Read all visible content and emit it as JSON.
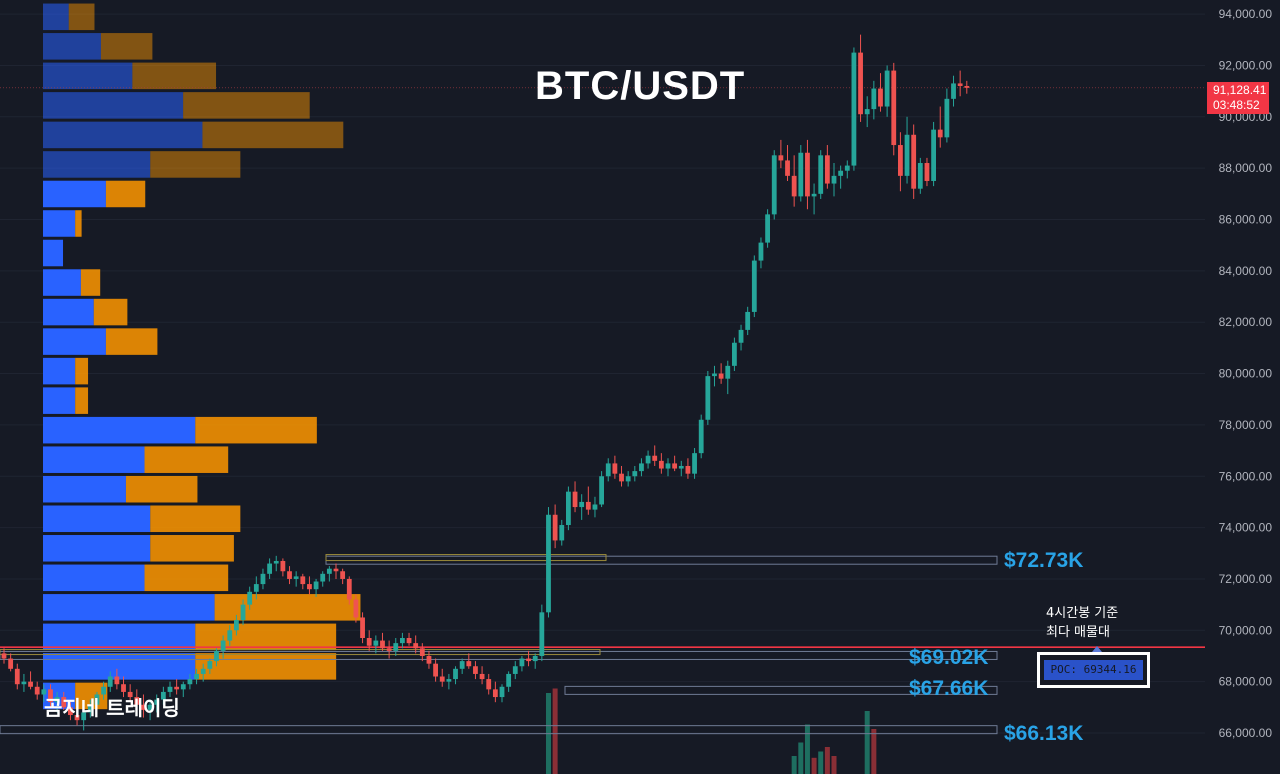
{
  "title": "BTC/USDT",
  "watermark": "곰지네 트레이딩",
  "current_price": {
    "price": "91,128.41",
    "countdown": "03:48:52",
    "value": 91128.41,
    "color": "#f23645"
  },
  "annotation": {
    "line1": "4시간봉 기준",
    "line2": "최다 매물대"
  },
  "poc": {
    "text": "POC: 69344.16",
    "value": 69344.16,
    "line_color": "#f23645"
  },
  "levels": [
    {
      "label": "$72.73K",
      "value": 72730
    },
    {
      "label": "$69.02K",
      "value": 69020
    },
    {
      "label": "$67.66K",
      "value": 67660
    },
    {
      "label": "$66.13K",
      "value": 66130
    }
  ],
  "colors": {
    "background": "#161a25",
    "up": "#26a69a",
    "down": "#ef5350",
    "volume_buy": "#2962ff",
    "volume_sell": "#ff9800",
    "level_label": "#29a3e6"
  },
  "chart_data": {
    "type": "candlestick",
    "title": "BTC/USDT",
    "timeframe": "4시간봉",
    "ylim": [
      65000,
      94500
    ],
    "y_ticks": [
      "94,000.00",
      "92,000.00",
      "90,000.00",
      "88,000.00",
      "86,000.00",
      "84,000.00",
      "82,000.00",
      "80,000.00",
      "78,000.00",
      "76,000.00",
      "74,000.00",
      "72,000.00",
      "70,000.00",
      "68,000.00",
      "66,000.00"
    ],
    "y_tick_values": [
      94000,
      92000,
      90000,
      88000,
      86000,
      84000,
      82000,
      80000,
      78000,
      76000,
      74000,
      72000,
      70000,
      68000,
      66000
    ],
    "volume_profile": {
      "bin_step": 1150,
      "top_price": 94450,
      "rows": [
        {
          "buy": 0.36,
          "sell": 0.36
        },
        {
          "buy": 0.81,
          "sell": 0.72
        },
        {
          "buy": 1.25,
          "sell": 1.17
        },
        {
          "buy": 1.96,
          "sell": 1.77
        },
        {
          "buy": 2.23,
          "sell": 1.97
        },
        {
          "buy": 1.5,
          "sell": 1.26
        },
        {
          "buy": 0.88,
          "sell": 0.55
        },
        {
          "buy": 0.45,
          "sell": 0.09
        },
        {
          "buy": 0.28,
          "sell": 0.0
        },
        {
          "buy": 0.53,
          "sell": 0.27
        },
        {
          "buy": 0.71,
          "sell": 0.47
        },
        {
          "buy": 0.88,
          "sell": 0.72
        },
        {
          "buy": 0.45,
          "sell": 0.18
        },
        {
          "buy": 0.45,
          "sell": 0.18
        },
        {
          "buy": 2.13,
          "sell": 1.7
        },
        {
          "buy": 1.42,
          "sell": 1.17
        },
        {
          "buy": 1.16,
          "sell": 1.0
        },
        {
          "buy": 1.5,
          "sell": 1.26
        },
        {
          "buy": 1.5,
          "sell": 1.17
        },
        {
          "buy": 1.42,
          "sell": 1.17
        },
        {
          "buy": 2.4,
          "sell": 2.04
        },
        {
          "buy": 2.13,
          "sell": 1.97
        },
        {
          "buy": 2.13,
          "sell": 1.97
        },
        {
          "buy": 0.45,
          "sell": 0.45
        }
      ]
    },
    "candles": [
      [
        69100,
        69300,
        68700,
        68900
      ],
      [
        68900,
        69100,
        68400,
        68500
      ],
      [
        68500,
        68700,
        67700,
        67900
      ],
      [
        67900,
        68300,
        67600,
        68000
      ],
      [
        68000,
        68400,
        67700,
        67800
      ],
      [
        67800,
        68000,
        67300,
        67500
      ],
      [
        67500,
        67900,
        67200,
        67700
      ],
      [
        67700,
        67900,
        67000,
        67200
      ],
      [
        67200,
        67600,
        66800,
        67400
      ],
      [
        67400,
        67600,
        66900,
        67000
      ],
      [
        67000,
        67200,
        66500,
        66700
      ],
      [
        66700,
        67000,
        66300,
        66500
      ],
      [
        66500,
        66900,
        66100,
        66800
      ],
      [
        66800,
        67300,
        66600,
        67100
      ],
      [
        67100,
        67600,
        66900,
        67500
      ],
      [
        67500,
        68000,
        67300,
        67800
      ],
      [
        67800,
        68400,
        67600,
        68200
      ],
      [
        68200,
        68500,
        67700,
        67900
      ],
      [
        67900,
        68200,
        67400,
        67600
      ],
      [
        67600,
        67900,
        67200,
        67400
      ],
      [
        67400,
        67700,
        66900,
        67100
      ],
      [
        67100,
        67500,
        66600,
        66900
      ],
      [
        66900,
        67300,
        66500,
        67100
      ],
      [
        67100,
        67500,
        66800,
        67300
      ],
      [
        67300,
        67800,
        67100,
        67600
      ],
      [
        67600,
        68000,
        67400,
        67800
      ],
      [
        67800,
        68100,
        67500,
        67700
      ],
      [
        67700,
        68000,
        67400,
        67900
      ],
      [
        67900,
        68300,
        67700,
        68100
      ],
      [
        68100,
        68500,
        67900,
        68300
      ],
      [
        68300,
        68700,
        68000,
        68500
      ],
      [
        68500,
        68900,
        68300,
        68800
      ],
      [
        68800,
        69300,
        68600,
        69200
      ],
      [
        69200,
        69800,
        68900,
        69600
      ],
      [
        69600,
        70200,
        69400,
        70000
      ],
      [
        70000,
        70600,
        69800,
        70400
      ],
      [
        70400,
        71200,
        70200,
        71000
      ],
      [
        71000,
        71700,
        70800,
        71500
      ],
      [
        71500,
        72100,
        71200,
        71800
      ],
      [
        71800,
        72400,
        71600,
        72200
      ],
      [
        72200,
        72800,
        72000,
        72600
      ],
      [
        72600,
        72900,
        72300,
        72700
      ],
      [
        72700,
        72800,
        72100,
        72300
      ],
      [
        72300,
        72500,
        71800,
        72000
      ],
      [
        72000,
        72300,
        71700,
        72100
      ],
      [
        72100,
        72200,
        71600,
        71800
      ],
      [
        71800,
        72100,
        71400,
        71600
      ],
      [
        71600,
        72000,
        71300,
        71900
      ],
      [
        71900,
        72300,
        71700,
        72200
      ],
      [
        72200,
        72500,
        71900,
        72400
      ],
      [
        72400,
        72600,
        72000,
        72300
      ],
      [
        72300,
        72400,
        71800,
        72000
      ],
      [
        72000,
        72100,
        71000,
        71200
      ],
      [
        71200,
        71400,
        70300,
        70500
      ],
      [
        70500,
        70700,
        69500,
        69700
      ],
      [
        69700,
        70000,
        69200,
        69400
      ],
      [
        69400,
        69800,
        69100,
        69600
      ],
      [
        69600,
        69900,
        69200,
        69300
      ],
      [
        69300,
        69600,
        68900,
        69200
      ],
      [
        69200,
        69700,
        69000,
        69500
      ],
      [
        69500,
        69900,
        69300,
        69700
      ],
      [
        69700,
        69900,
        69400,
        69500
      ],
      [
        69500,
        69800,
        69100,
        69300
      ],
      [
        69300,
        69500,
        68800,
        69000
      ],
      [
        69000,
        69200,
        68500,
        68700
      ],
      [
        68700,
        68900,
        68000,
        68200
      ],
      [
        68200,
        68500,
        67800,
        68000
      ],
      [
        68000,
        68300,
        67700,
        68100
      ],
      [
        68100,
        68600,
        67900,
        68500
      ],
      [
        68500,
        68900,
        68300,
        68800
      ],
      [
        68800,
        69100,
        68500,
        68600
      ],
      [
        68600,
        68800,
        68100,
        68300
      ],
      [
        68300,
        68600,
        67900,
        68100
      ],
      [
        68100,
        68300,
        67500,
        67700
      ],
      [
        67700,
        68000,
        67200,
        67400
      ],
      [
        67400,
        67900,
        67200,
        67800
      ],
      [
        67800,
        68400,
        67600,
        68300
      ],
      [
        68300,
        68800,
        68100,
        68600
      ],
      [
        68600,
        69000,
        68400,
        68900
      ],
      [
        68900,
        69200,
        68600,
        68800
      ],
      [
        68800,
        69100,
        68500,
        69000
      ],
      [
        69000,
        71000,
        68800,
        70700
      ],
      [
        70700,
        74800,
        70500,
        74500
      ],
      [
        74500,
        74900,
        73200,
        73500
      ],
      [
        73500,
        74300,
        73300,
        74100
      ],
      [
        74100,
        75600,
        73900,
        75400
      ],
      [
        75400,
        75800,
        74600,
        74800
      ],
      [
        74800,
        75300,
        74300,
        75000
      ],
      [
        75000,
        75600,
        74500,
        74700
      ],
      [
        74700,
        75200,
        74400,
        74900
      ],
      [
        74900,
        76200,
        74800,
        76000
      ],
      [
        76000,
        76700,
        75800,
        76500
      ],
      [
        76500,
        76800,
        75900,
        76100
      ],
      [
        76100,
        76400,
        75600,
        75800
      ],
      [
        75800,
        76200,
        75600,
        76000
      ],
      [
        76000,
        76400,
        75800,
        76200
      ],
      [
        76200,
        76700,
        76000,
        76500
      ],
      [
        76500,
        77000,
        76300,
        76800
      ],
      [
        76800,
        77200,
        76400,
        76600
      ],
      [
        76600,
        76900,
        76100,
        76300
      ],
      [
        76300,
        76700,
        76000,
        76500
      ],
      [
        76500,
        76800,
        76200,
        76300
      ],
      [
        76300,
        76600,
        76000,
        76400
      ],
      [
        76400,
        76700,
        75900,
        76100
      ],
      [
        76100,
        77100,
        75900,
        76900
      ],
      [
        76900,
        78400,
        76700,
        78200
      ],
      [
        78200,
        80100,
        78000,
        79900
      ],
      [
        79900,
        80300,
        79500,
        80000
      ],
      [
        80000,
        80400,
        79600,
        79800
      ],
      [
        79800,
        80500,
        79200,
        80300
      ],
      [
        80300,
        81400,
        80100,
        81200
      ],
      [
        81200,
        81900,
        80900,
        81700
      ],
      [
        81700,
        82600,
        81500,
        82400
      ],
      [
        82400,
        84600,
        82200,
        84400
      ],
      [
        84400,
        85300,
        84100,
        85100
      ],
      [
        85100,
        86400,
        84900,
        86200
      ],
      [
        86200,
        88700,
        86000,
        88500
      ],
      [
        88500,
        89100,
        88000,
        88300
      ],
      [
        88300,
        88900,
        87500,
        87700
      ],
      [
        87700,
        88500,
        86500,
        86900
      ],
      [
        86900,
        88900,
        86700,
        88600
      ],
      [
        88600,
        89100,
        86400,
        86900
      ],
      [
        86900,
        87400,
        86200,
        87000
      ],
      [
        87000,
        88700,
        86800,
        88500
      ],
      [
        88500,
        88900,
        87200,
        87400
      ],
      [
        87400,
        88200,
        86900,
        87700
      ],
      [
        87700,
        88100,
        87200,
        87900
      ],
      [
        87900,
        88300,
        87600,
        88100
      ],
      [
        88100,
        92700,
        87900,
        92500
      ],
      [
        92500,
        93200,
        89800,
        90100
      ],
      [
        90100,
        90800,
        89600,
        90300
      ],
      [
        90300,
        91400,
        89900,
        91100
      ],
      [
        91100,
        91700,
        90200,
        90400
      ],
      [
        90400,
        92000,
        90000,
        91800
      ],
      [
        91800,
        92100,
        88500,
        88900
      ],
      [
        88900,
        89400,
        87100,
        87700
      ],
      [
        87700,
        90000,
        87400,
        89300
      ],
      [
        89300,
        89700,
        86800,
        87200
      ],
      [
        87200,
        88400,
        87000,
        88200
      ],
      [
        88200,
        88400,
        87300,
        87500
      ],
      [
        87500,
        89800,
        87300,
        89500
      ],
      [
        89500,
        90400,
        88800,
        89200
      ],
      [
        89200,
        91100,
        89000,
        90700
      ],
      [
        90700,
        91600,
        90400,
        91300
      ],
      [
        91300,
        91800,
        90800,
        91200
      ],
      [
        91200,
        91400,
        90900,
        91128
      ]
    ],
    "volume_bars": [
      {
        "candle_index": 82,
        "value": 0.9,
        "side": "up"
      },
      {
        "candle_index": 83,
        "value": 0.95,
        "side": "down"
      },
      {
        "candle_index": 119,
        "value": 0.2,
        "side": "up"
      },
      {
        "candle_index": 120,
        "value": 0.35,
        "side": "up"
      },
      {
        "candle_index": 121,
        "value": 0.55,
        "side": "up"
      },
      {
        "candle_index": 122,
        "value": 0.18,
        "side": "down"
      },
      {
        "candle_index": 123,
        "value": 0.25,
        "side": "up"
      },
      {
        "candle_index": 124,
        "value": 0.3,
        "side": "down"
      },
      {
        "candle_index": 125,
        "value": 0.2,
        "side": "down"
      },
      {
        "candle_index": 130,
        "value": 0.7,
        "side": "up"
      },
      {
        "candle_index": 131,
        "value": 0.5,
        "side": "down"
      }
    ]
  }
}
